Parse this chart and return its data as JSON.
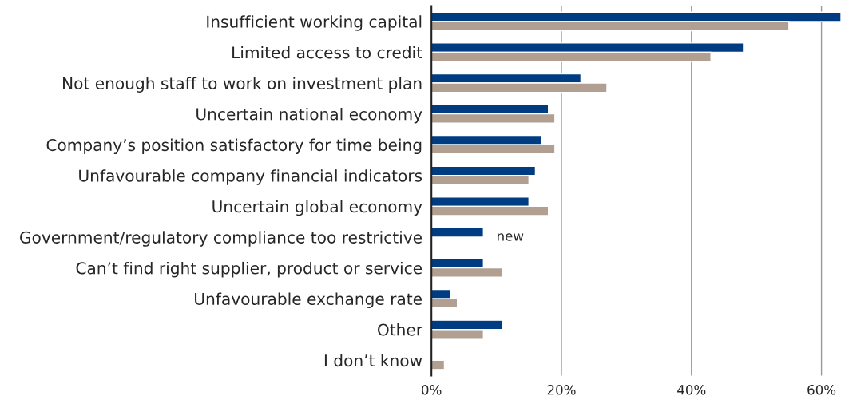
{
  "chart_data": {
    "type": "bar",
    "orientation": "horizontal",
    "categories": [
      "Insufficient working capital",
      "Limited access to credit",
      "Not enough staff to work on investment plan",
      "Uncertain national economy",
      "Company’s position satisfactory for time being",
      "Unfavourable company financial indicators",
      "Uncertain global economy",
      "Government/regulatory compliance too restrictive",
      "Can’t find right supplier, product or service",
      "Unfavourable exchange rate",
      "Other",
      "I don’t know"
    ],
    "series": [
      {
        "color": "#003c82",
        "values": [
          63,
          48,
          23,
          18,
          17,
          16,
          15,
          8,
          8,
          3,
          11,
          null
        ]
      },
      {
        "color": "#b1a092",
        "values": [
          55,
          43,
          27,
          19,
          19,
          15,
          18,
          null,
          11,
          4,
          8,
          2
        ]
      }
    ],
    "xlim": [
      0,
      63
    ],
    "xticks": [
      {
        "value": 0,
        "label": "0%"
      },
      {
        "value": 20,
        "label": "20%"
      },
      {
        "value": 40,
        "label": "40%"
      },
      {
        "value": 60,
        "label": "60%"
      }
    ],
    "grid": "x",
    "annotations": [
      "new"
    ]
  }
}
